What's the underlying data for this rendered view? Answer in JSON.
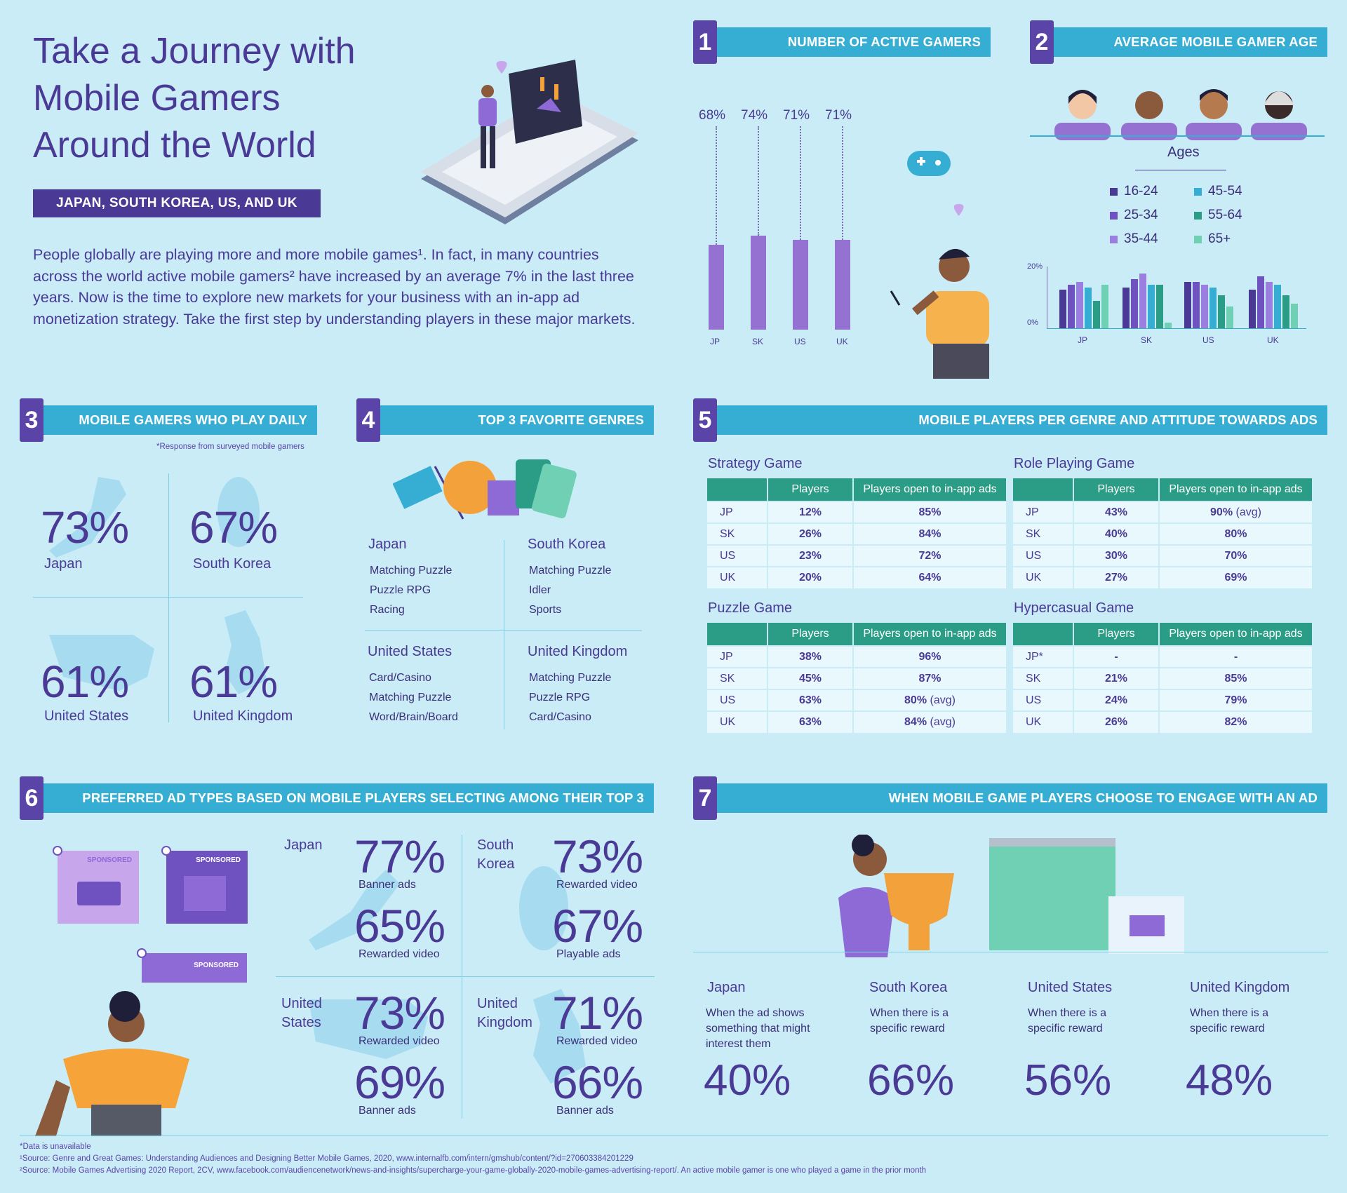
{
  "header": {
    "title_lines": [
      "Take a Journey with",
      "Mobile Gamers",
      "Around the World"
    ],
    "subtitle": "JAPAN, SOUTH KOREA, US, AND UK",
    "intro": "People globally are playing more and more mobile games¹. In fact, in many countries across the world active mobile gamers² have increased by an average 7% in the last three years. Now is the time to explore new markets for your business with an in-app ad monetization strategy. Take the first step by understanding players in these major markets."
  },
  "sections": {
    "s1": {
      "num": "1",
      "title": "NUMBER OF ACTIVE GAMERS"
    },
    "s2": {
      "num": "2",
      "title": "AVERAGE MOBILE GAMER AGE"
    },
    "s3": {
      "num": "3",
      "title": "MOBILE GAMERS WHO PLAY DAILY"
    },
    "s4": {
      "num": "4",
      "title": "TOP 3 FAVORITE GENRES"
    },
    "s5": {
      "num": "5",
      "title": "MOBILE PLAYERS PER GENRE AND ATTITUDE TOWARDS ADS"
    },
    "s6": {
      "num": "6",
      "title": "PREFERRED AD TYPES BASED ON MOBILE PLAYERS SELECTING AMONG THEIR TOP 3"
    },
    "s7": {
      "num": "7",
      "title": "WHEN MOBILE GAME PLAYERS CHOOSE TO ENGAGE WITH AN AD"
    }
  },
  "chart_data": [
    {
      "type": "bar",
      "categories": [
        "JP",
        "SK",
        "US",
        "UK"
      ],
      "values": [
        68,
        74,
        71,
        71
      ],
      "value_labels": [
        "68%",
        "74%",
        "71%",
        "71%"
      ],
      "ylim": [
        0,
        100
      ]
    },
    {
      "type": "bar",
      "title": "Ages",
      "categories": [
        "JP",
        "SK",
        "US",
        "UK"
      ],
      "ylim": [
        0,
        20
      ],
      "y_ticks": [
        "0%",
        "20%"
      ],
      "series": [
        {
          "name": "16-24",
          "color": "#4a3a96",
          "values": [
            14,
            15,
            17,
            14
          ]
        },
        {
          "name": "25-34",
          "color": "#6f52c0",
          "values": [
            16,
            18,
            17,
            19
          ]
        },
        {
          "name": "35-44",
          "color": "#9a7ee0",
          "values": [
            17,
            20,
            16,
            17
          ]
        },
        {
          "name": "45-54",
          "color": "#36aed4",
          "values": [
            15,
            16,
            15,
            16
          ]
        },
        {
          "name": "55-64",
          "color": "#2b9d86",
          "values": [
            10,
            16,
            12,
            12
          ]
        },
        {
          "name": "65+",
          "color": "#6fd0b3",
          "values": [
            16,
            2,
            8,
            9
          ]
        }
      ]
    }
  ],
  "daily": {
    "note": "*Response from surveyed mobile gamers",
    "items": [
      {
        "pct": "73%",
        "country": "Japan"
      },
      {
        "pct": "67%",
        "country": "South Korea"
      },
      {
        "pct": "61%",
        "country": "United States"
      },
      {
        "pct": "61%",
        "country": "United Kingdom"
      }
    ]
  },
  "genres": [
    {
      "country": "Japan",
      "items": [
        "Matching Puzzle",
        "Puzzle RPG",
        "Racing"
      ]
    },
    {
      "country": "South Korea",
      "items": [
        "Matching Puzzle",
        "Idler",
        "Sports"
      ]
    },
    {
      "country": "United States",
      "items": [
        "Card/Casino",
        "Matching Puzzle",
        "Word/Brain/Board"
      ]
    },
    {
      "country": "United Kingdom",
      "items": [
        "Matching Puzzle",
        "Puzzle RPG",
        "Card/Casino"
      ]
    }
  ],
  "genre_tables": {
    "col_players": "Players",
    "col_open": "Players open to in-app ads",
    "strategy": {
      "title": "Strategy Game",
      "rows": [
        {
          "c": "JP",
          "p": "12%",
          "o": "85%",
          "avg": ""
        },
        {
          "c": "SK",
          "p": "26%",
          "o": "84%",
          "avg": ""
        },
        {
          "c": "US",
          "p": "23%",
          "o": "72%",
          "avg": ""
        },
        {
          "c": "UK",
          "p": "20%",
          "o": "64%",
          "avg": ""
        }
      ]
    },
    "rpg": {
      "title": "Role Playing Game",
      "rows": [
        {
          "c": "JP",
          "p": "43%",
          "o": "90%",
          "avg": "(avg)"
        },
        {
          "c": "SK",
          "p": "40%",
          "o": "80%",
          "avg": ""
        },
        {
          "c": "US",
          "p": "30%",
          "o": "70%",
          "avg": ""
        },
        {
          "c": "UK",
          "p": "27%",
          "o": "69%",
          "avg": ""
        }
      ]
    },
    "puzzle": {
      "title": "Puzzle Game",
      "rows": [
        {
          "c": "JP",
          "p": "38%",
          "o": "96%",
          "avg": ""
        },
        {
          "c": "SK",
          "p": "45%",
          "o": "87%",
          "avg": ""
        },
        {
          "c": "US",
          "p": "63%",
          "o": "80%",
          "avg": "(avg)"
        },
        {
          "c": "UK",
          "p": "63%",
          "o": "84%",
          "avg": "(avg)"
        }
      ]
    },
    "hyper": {
      "title": "Hypercasual Game",
      "rows": [
        {
          "c": "JP*",
          "p": "-",
          "o": "-",
          "avg": ""
        },
        {
          "c": "SK",
          "p": "21%",
          "o": "85%",
          "avg": ""
        },
        {
          "c": "US",
          "p": "24%",
          "o": "79%",
          "avg": ""
        },
        {
          "c": "UK",
          "p": "26%",
          "o": "82%",
          "avg": ""
        }
      ]
    }
  },
  "ads": {
    "sponsored": "SPONSORED",
    "items": [
      {
        "country": "Japan",
        "a_pct": "77%",
        "a_lbl": "Banner ads",
        "b_pct": "65%",
        "b_lbl": "Rewarded video"
      },
      {
        "country": "South Korea",
        "country_l1": "South",
        "country_l2": "Korea",
        "a_pct": "73%",
        "a_lbl": "Rewarded video",
        "b_pct": "67%",
        "b_lbl": "Playable ads"
      },
      {
        "country": "United States",
        "country_l1": "United",
        "country_l2": "States",
        "a_pct": "73%",
        "a_lbl": "Rewarded video",
        "b_pct": "69%",
        "b_lbl": "Banner ads"
      },
      {
        "country": "United Kingdom",
        "country_l1": "United",
        "country_l2": "Kingdom",
        "a_pct": "71%",
        "a_lbl": "Rewarded video",
        "b_pct": "66%",
        "b_lbl": "Banner ads"
      }
    ]
  },
  "engage": [
    {
      "country": "Japan",
      "desc": "When the ad shows something that might interest them",
      "pct": "40%"
    },
    {
      "country": "South Korea",
      "desc": "When there is a specific reward",
      "pct": "66%"
    },
    {
      "country": "United States",
      "desc": "When there is a specific reward",
      "pct": "56%"
    },
    {
      "country": "United Kingdom",
      "desc": "When there is a specific reward",
      "pct": "48%"
    }
  ],
  "footer": {
    "l1": "*Data is unavailable",
    "l2": "¹Source: Genre and Great Games: Understanding Audiences and Designing Better Mobile Games, 2020, www.internalfb.com/intern/gmshub/content/?id=270603384201229",
    "l3": "²Source: Mobile Games Advertising 2020 Report, 2CV, www.facebook.com/audiencenetwork/news-and-insights/supercharge-your-game-globally-2020-mobile-games-advertising-report/. An active mobile gamer is one who played a game in the prior month"
  }
}
